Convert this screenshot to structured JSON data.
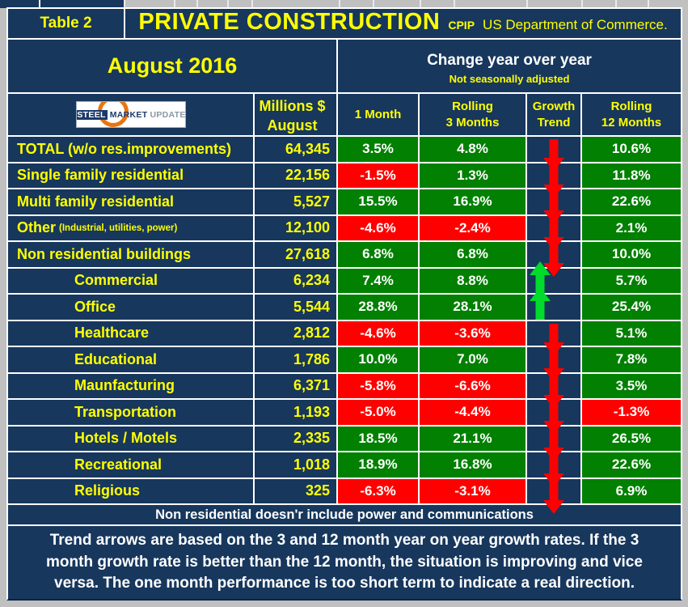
{
  "header": {
    "table_label": "Table 2",
    "title": "PRIVATE CONSTRUCTION",
    "title_abbr": "CPIP",
    "title_source": "US Department of Commerce.",
    "period": "August 2016",
    "change_title": "Change year over year",
    "change_subtitle": "Not seasonally adjusted"
  },
  "logo": {
    "word1": "STEEL",
    "word2": "MARKET",
    "word3": "UPDATE"
  },
  "columns": [
    {
      "id": "millions",
      "lines": [
        "Millions $",
        "August"
      ]
    },
    {
      "id": "m1",
      "lines": [
        "1 Month"
      ]
    },
    {
      "id": "m3",
      "lines": [
        "Rolling",
        "3 Months"
      ]
    },
    {
      "id": "trend",
      "lines": [
        "Growth",
        "Trend"
      ]
    },
    {
      "id": "m12",
      "lines": [
        "Rolling",
        "12 Months"
      ]
    }
  ],
  "rows": [
    {
      "label": "TOTAL (w/o res.improvements)",
      "indent": false,
      "millions": "64,345",
      "m1": {
        "v": "3.5%",
        "c": "green"
      },
      "m3": {
        "v": "4.8%",
        "c": "green"
      },
      "trend": "down",
      "m12": {
        "v": "10.6%",
        "c": "green"
      }
    },
    {
      "label": "Single family residential",
      "indent": false,
      "millions": "22,156",
      "m1": {
        "v": "-1.5%",
        "c": "red"
      },
      "m3": {
        "v": "1.3%",
        "c": "green"
      },
      "trend": "down",
      "m12": {
        "v": "11.8%",
        "c": "green"
      }
    },
    {
      "label": "Multi family residential",
      "indent": false,
      "millions": "5,527",
      "m1": {
        "v": "15.5%",
        "c": "green"
      },
      "m3": {
        "v": "16.9%",
        "c": "green"
      },
      "trend": "down",
      "m12": {
        "v": "22.6%",
        "c": "green"
      }
    },
    {
      "label": "Other",
      "label_note": "(Industrial, utilities, power)",
      "indent": false,
      "millions": "12,100",
      "m1": {
        "v": "-4.6%",
        "c": "red"
      },
      "m3": {
        "v": "-2.4%",
        "c": "red"
      },
      "trend": "down",
      "m12": {
        "v": "2.1%",
        "c": "green"
      }
    },
    {
      "label": "Non residential buildings",
      "indent": false,
      "millions": "27,618",
      "m1": {
        "v": "6.8%",
        "c": "green"
      },
      "m3": {
        "v": "6.8%",
        "c": "green"
      },
      "trend": "down",
      "m12": {
        "v": "10.0%",
        "c": "green"
      }
    },
    {
      "label": "Commercial",
      "indent": true,
      "millions": "6,234",
      "m1": {
        "v": "7.4%",
        "c": "green"
      },
      "m3": {
        "v": "8.8%",
        "c": "green"
      },
      "trend": "up",
      "m12": {
        "v": "5.7%",
        "c": "green"
      }
    },
    {
      "label": "Office",
      "indent": true,
      "millions": "5,544",
      "m1": {
        "v": "28.8%",
        "c": "green"
      },
      "m3": {
        "v": "28.1%",
        "c": "green"
      },
      "trend": "up",
      "m12": {
        "v": "25.4%",
        "c": "green"
      }
    },
    {
      "label": "Healthcare",
      "indent": true,
      "millions": "2,812",
      "m1": {
        "v": "-4.6%",
        "c": "red"
      },
      "m3": {
        "v": "-3.6%",
        "c": "red"
      },
      "trend": "down",
      "m12": {
        "v": "5.1%",
        "c": "green"
      }
    },
    {
      "label": "Educational",
      "indent": true,
      "millions": "1,786",
      "m1": {
        "v": "10.0%",
        "c": "green"
      },
      "m3": {
        "v": "7.0%",
        "c": "green"
      },
      "trend": "down",
      "m12": {
        "v": "7.8%",
        "c": "green"
      }
    },
    {
      "label": "Maunfacturing",
      "indent": true,
      "millions": "6,371",
      "m1": {
        "v": "-5.8%",
        "c": "red"
      },
      "m3": {
        "v": "-6.6%",
        "c": "red"
      },
      "trend": "down",
      "m12": {
        "v": "3.5%",
        "c": "green"
      }
    },
    {
      "label": "Transportation",
      "indent": true,
      "millions": "1,193",
      "m1": {
        "v": "-5.0%",
        "c": "red"
      },
      "m3": {
        "v": "-4.4%",
        "c": "red"
      },
      "trend": "down",
      "m12": {
        "v": "-1.3%",
        "c": "red"
      }
    },
    {
      "label": "Hotels / Motels",
      "indent": true,
      "millions": "2,335",
      "m1": {
        "v": "18.5%",
        "c": "green"
      },
      "m3": {
        "v": "21.1%",
        "c": "green"
      },
      "trend": "down",
      "m12": {
        "v": "26.5%",
        "c": "green"
      }
    },
    {
      "label": "Recreational",
      "indent": true,
      "millions": "1,018",
      "m1": {
        "v": "18.9%",
        "c": "green"
      },
      "m3": {
        "v": "16.8%",
        "c": "green"
      },
      "trend": "down",
      "m12": {
        "v": "22.6%",
        "c": "green"
      }
    },
    {
      "label": "Religious",
      "indent": true,
      "millions": "325",
      "m1": {
        "v": "-6.3%",
        "c": "red"
      },
      "m3": {
        "v": "-3.1%",
        "c": "red"
      },
      "trend": "down",
      "m12": {
        "v": "6.9%",
        "c": "green"
      }
    }
  ],
  "footer": {
    "note": "Non residential doesn'r include power and communications",
    "explanation": "Trend arrows are based on the 3 and 12 month year on year growth rates. If the 3 month growth rate is better than the 12 month, the situation is improving and vice versa. The one month performance is too short term to indicate a real direction."
  },
  "colors": {
    "navy": "#17375D",
    "green": "#018001",
    "red": "#FF0000",
    "yellow": "#FFFF00",
    "trend_up": "#00DB2C",
    "trend_down": "#FF0000",
    "frame": "#C0C0C0",
    "logo_orange": "#E87511"
  },
  "chart_data": {
    "type": "table",
    "title": "PRIVATE CONSTRUCTION (CPIP, US Department of Commerce) — August 2016",
    "subtitle": "Change year over year, Not seasonally adjusted",
    "columns": [
      "Category",
      "Millions $ August",
      "1 Month %",
      "Rolling 3 Months %",
      "Growth Trend",
      "Rolling 12 Months %"
    ],
    "rows": [
      [
        "TOTAL (w/o res.improvements)",
        64345,
        3.5,
        4.8,
        "down",
        10.6
      ],
      [
        "Single family residential",
        22156,
        -1.5,
        1.3,
        "down",
        11.8
      ],
      [
        "Multi family residential",
        5527,
        15.5,
        16.9,
        "down",
        22.6
      ],
      [
        "Other (Industrial, utilities, power)",
        12100,
        -4.6,
        -2.4,
        "down",
        2.1
      ],
      [
        "Non residential buildings",
        27618,
        6.8,
        6.8,
        "down",
        10.0
      ],
      [
        "Commercial",
        6234,
        7.4,
        8.8,
        "up",
        5.7
      ],
      [
        "Office",
        5544,
        28.8,
        28.1,
        "up",
        25.4
      ],
      [
        "Healthcare",
        2812,
        -4.6,
        -3.6,
        "down",
        5.1
      ],
      [
        "Educational",
        1786,
        10.0,
        7.0,
        "down",
        7.8
      ],
      [
        "Maunfacturing",
        6371,
        -5.8,
        -6.6,
        "down",
        3.5
      ],
      [
        "Transportation",
        1193,
        -5.0,
        -4.4,
        "down",
        -1.3
      ],
      [
        "Hotels / Motels",
        2335,
        18.5,
        21.1,
        "down",
        26.5
      ],
      [
        "Recreational",
        1018,
        18.9,
        16.8,
        "down",
        22.6
      ],
      [
        "Religious",
        325,
        -6.3,
        -3.1,
        "down",
        6.9
      ]
    ]
  }
}
